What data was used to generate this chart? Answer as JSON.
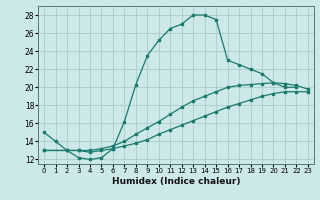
{
  "title": "",
  "xlabel": "Humidex (Indice chaleur)",
  "xlim": [
    -0.5,
    23.5
  ],
  "ylim": [
    11.5,
    29
  ],
  "xticks": [
    0,
    1,
    2,
    3,
    4,
    5,
    6,
    7,
    8,
    9,
    10,
    11,
    12,
    13,
    14,
    15,
    16,
    17,
    18,
    19,
    20,
    21,
    22,
    23
  ],
  "yticks": [
    12,
    14,
    16,
    18,
    20,
    22,
    24,
    26,
    28
  ],
  "bg_color": "#cce8e8",
  "line_color": "#1a7a6e",
  "grid_color": "#aacccc",
  "lines": [
    {
      "x": [
        0,
        1,
        2,
        3,
        4,
        5,
        6,
        7,
        8,
        9,
        10,
        11,
        12,
        13,
        14,
        15,
        16,
        17,
        18,
        19,
        20,
        21,
        22
      ],
      "y": [
        15,
        14,
        13,
        12.2,
        12,
        12.2,
        13.2,
        16.2,
        20.3,
        23.5,
        25.2,
        26.5,
        27,
        28,
        28,
        27.5,
        23,
        22.5,
        22,
        21.5,
        20.5,
        20,
        20
      ]
    },
    {
      "x": [
        0,
        2,
        3,
        4,
        5,
        6,
        7,
        8,
        9,
        10,
        11,
        12,
        13,
        14,
        15,
        16,
        17,
        18,
        19,
        20,
        21,
        22,
        23
      ],
      "y": [
        13,
        13,
        13,
        12.8,
        13,
        13.2,
        13.5,
        13.8,
        14.2,
        14.8,
        15.3,
        15.8,
        16.3,
        16.8,
        17.3,
        17.8,
        18.2,
        18.6,
        19.0,
        19.3,
        19.5,
        19.5,
        19.5
      ]
    },
    {
      "x": [
        0,
        2,
        3,
        4,
        5,
        6,
        7,
        8,
        9,
        10,
        11,
        12,
        13,
        14,
        15,
        16,
        17,
        18,
        19,
        20,
        21,
        22,
        23
      ],
      "y": [
        13,
        13,
        13,
        13,
        13.2,
        13.5,
        14,
        14.8,
        15.5,
        16.2,
        17,
        17.8,
        18.5,
        19,
        19.5,
        20,
        20.2,
        20.3,
        20.4,
        20.5,
        20.4,
        20.2,
        19.8
      ]
    }
  ]
}
